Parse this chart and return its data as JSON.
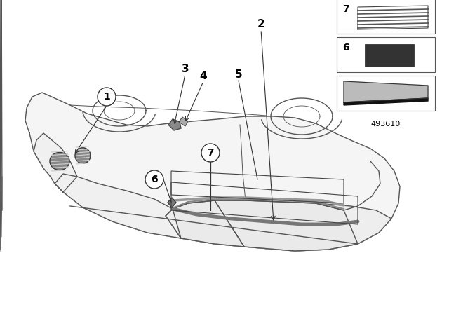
{
  "part_number": "493610",
  "bg": "#ffffff",
  "line_color": "#444444",
  "car_color": "#555555",
  "dark_gray": "#555555",
  "light_gray": "#aaaaaa",
  "font_size": 10,
  "circle_r": 0.013,
  "figsize": [
    6.4,
    4.48
  ],
  "dpi": 100
}
